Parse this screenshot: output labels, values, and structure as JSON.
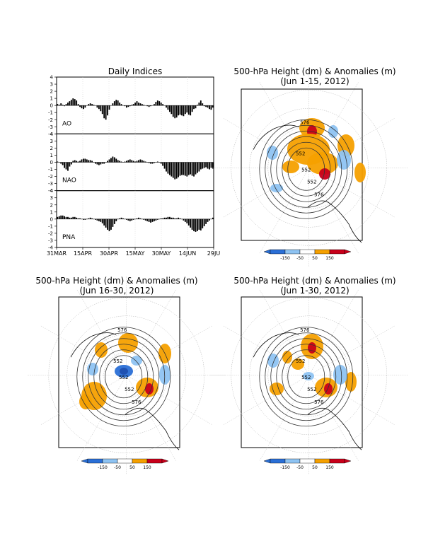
{
  "indices_panel": {
    "title": "Daily Indices",
    "x_tick_labels": [
      "31MAR",
      "15APR",
      "30APR",
      "15MAY",
      "30MAY",
      "14JUN",
      "29JU"
    ],
    "y_tick_labels": [
      "4",
      "3",
      "2",
      "1",
      "0",
      "-1",
      "-2",
      "-3",
      "-4"
    ]
  },
  "map_panels": [
    {
      "title_line1": "500-hPa Height (dm) & Anomalies (m)",
      "title_line2": "(Jun 1-15, 2012)"
    },
    {
      "title_line1": "500-hPa Height (dm) & Anomalies (m)",
      "title_line2": "(Jun 16-30, 2012)"
    },
    {
      "title_line1": "500-hPa Height (dm) & Anomalies (m)",
      "title_line2": "(Jun 1-30, 2012)"
    }
  ],
  "contour_labels": [
    "576",
    "552",
    "552",
    "552",
    "576"
  ],
  "colorbar": {
    "labels": [
      "-150",
      "-50",
      "50",
      "150"
    ],
    "colors": [
      "#2a6fd6",
      "#8ec3f2",
      "#ffffff",
      "#f5a000",
      "#c8001a"
    ]
  },
  "chart_data": [
    {
      "type": "bar",
      "ylim": [
        -4,
        4
      ],
      "x_range": [
        "2012-03-31",
        "2012-06-30"
      ],
      "series": [
        {
          "name": "AO",
          "values": [
            0.2,
            0.1,
            0.3,
            0.1,
            -0.1,
            0.2,
            0.4,
            0.6,
            0.8,
            1.0,
            0.9,
            0.7,
            0.2,
            -0.2,
            -0.4,
            -0.5,
            -0.3,
            0.0,
            0.2,
            0.3,
            0.2,
            0.1,
            0.0,
            -0.3,
            -0.5,
            -0.8,
            -1.2,
            -1.8,
            -2.0,
            -1.4,
            -0.6,
            0.0,
            0.3,
            0.6,
            0.8,
            0.7,
            0.4,
            0.2,
            0.0,
            -0.1,
            -0.3,
            -0.2,
            -0.1,
            0.1,
            0.2,
            0.4,
            0.6,
            0.4,
            0.3,
            0.2,
            0.1,
            0.0,
            -0.1,
            -0.2,
            -0.1,
            0.0,
            0.2,
            0.5,
            0.7,
            0.6,
            0.4,
            0.2,
            0.0,
            -0.3,
            -0.6,
            -0.9,
            -1.2,
            -1.6,
            -1.8,
            -1.7,
            -1.4,
            -1.3,
            -1.4,
            -1.5,
            -1.2,
            -1.0,
            -1.3,
            -1.4,
            -0.9,
            -0.5,
            -0.4,
            0.1,
            0.4,
            0.7,
            0.3,
            -0.1,
            -0.2,
            -0.3,
            -0.5,
            -0.6,
            -0.3
          ]
        },
        {
          "name": "NAO",
          "values": [
            0.1,
            0.0,
            -0.2,
            -0.4,
            -0.8,
            -1.0,
            -1.2,
            -0.6,
            -0.3,
            0.2,
            0.3,
            0.2,
            0.1,
            0.2,
            0.4,
            0.5,
            0.5,
            0.4,
            0.3,
            0.3,
            0.2,
            0.0,
            -0.2,
            -0.3,
            -0.4,
            -0.3,
            -0.2,
            -0.2,
            0.0,
            0.2,
            0.4,
            0.6,
            0.8,
            0.7,
            0.5,
            0.3,
            0.2,
            0.1,
            0.0,
            0.1,
            0.2,
            0.3,
            0.4,
            0.3,
            0.2,
            0.1,
            0.2,
            0.3,
            0.4,
            0.3,
            0.2,
            0.1,
            0.0,
            -0.1,
            -0.2,
            -0.2,
            -0.1,
            0.0,
            0.1,
            0.0,
            -0.2,
            -0.5,
            -0.9,
            -1.3,
            -1.6,
            -1.8,
            -2.0,
            -2.2,
            -2.4,
            -2.3,
            -2.1,
            -1.9,
            -1.8,
            -1.8,
            -1.9,
            -2.0,
            -1.8,
            -1.7,
            -1.9,
            -2.0,
            -1.7,
            -1.5,
            -1.3,
            -1.0,
            -0.9,
            -0.8,
            -0.7,
            -0.9,
            -1.0,
            -0.8,
            -0.9
          ]
        },
        {
          "name": "PNA",
          "values": [
            0.3,
            0.4,
            0.5,
            0.5,
            0.4,
            0.3,
            0.3,
            0.2,
            0.2,
            0.3,
            0.3,
            0.2,
            0.1,
            0.1,
            0.0,
            -0.1,
            -0.1,
            0.0,
            0.1,
            0.2,
            0.1,
            0.0,
            -0.1,
            -0.2,
            -0.3,
            -0.4,
            -0.6,
            -0.9,
            -1.2,
            -1.5,
            -1.7,
            -1.5,
            -1.1,
            -0.7,
            -0.3,
            0.0,
            0.1,
            0.2,
            0.1,
            0.0,
            -0.1,
            -0.2,
            -0.3,
            -0.2,
            -0.1,
            0.0,
            0.1,
            0.2,
            0.1,
            0.0,
            -0.1,
            -0.2,
            -0.3,
            -0.4,
            -0.5,
            -0.4,
            -0.3,
            -0.2,
            -0.1,
            0.0,
            0.1,
            0.1,
            0.2,
            0.2,
            0.3,
            0.3,
            0.2,
            0.2,
            0.1,
            0.1,
            0.2,
            0.1,
            0.0,
            -0.2,
            -0.4,
            -0.6,
            -0.9,
            -1.2,
            -1.5,
            -1.7,
            -1.8,
            -1.7,
            -1.5,
            -1.6,
            -1.3,
            -1.0,
            -0.7,
            -0.4,
            -0.2,
            0.0,
            0.2
          ]
        }
      ]
    }
  ]
}
